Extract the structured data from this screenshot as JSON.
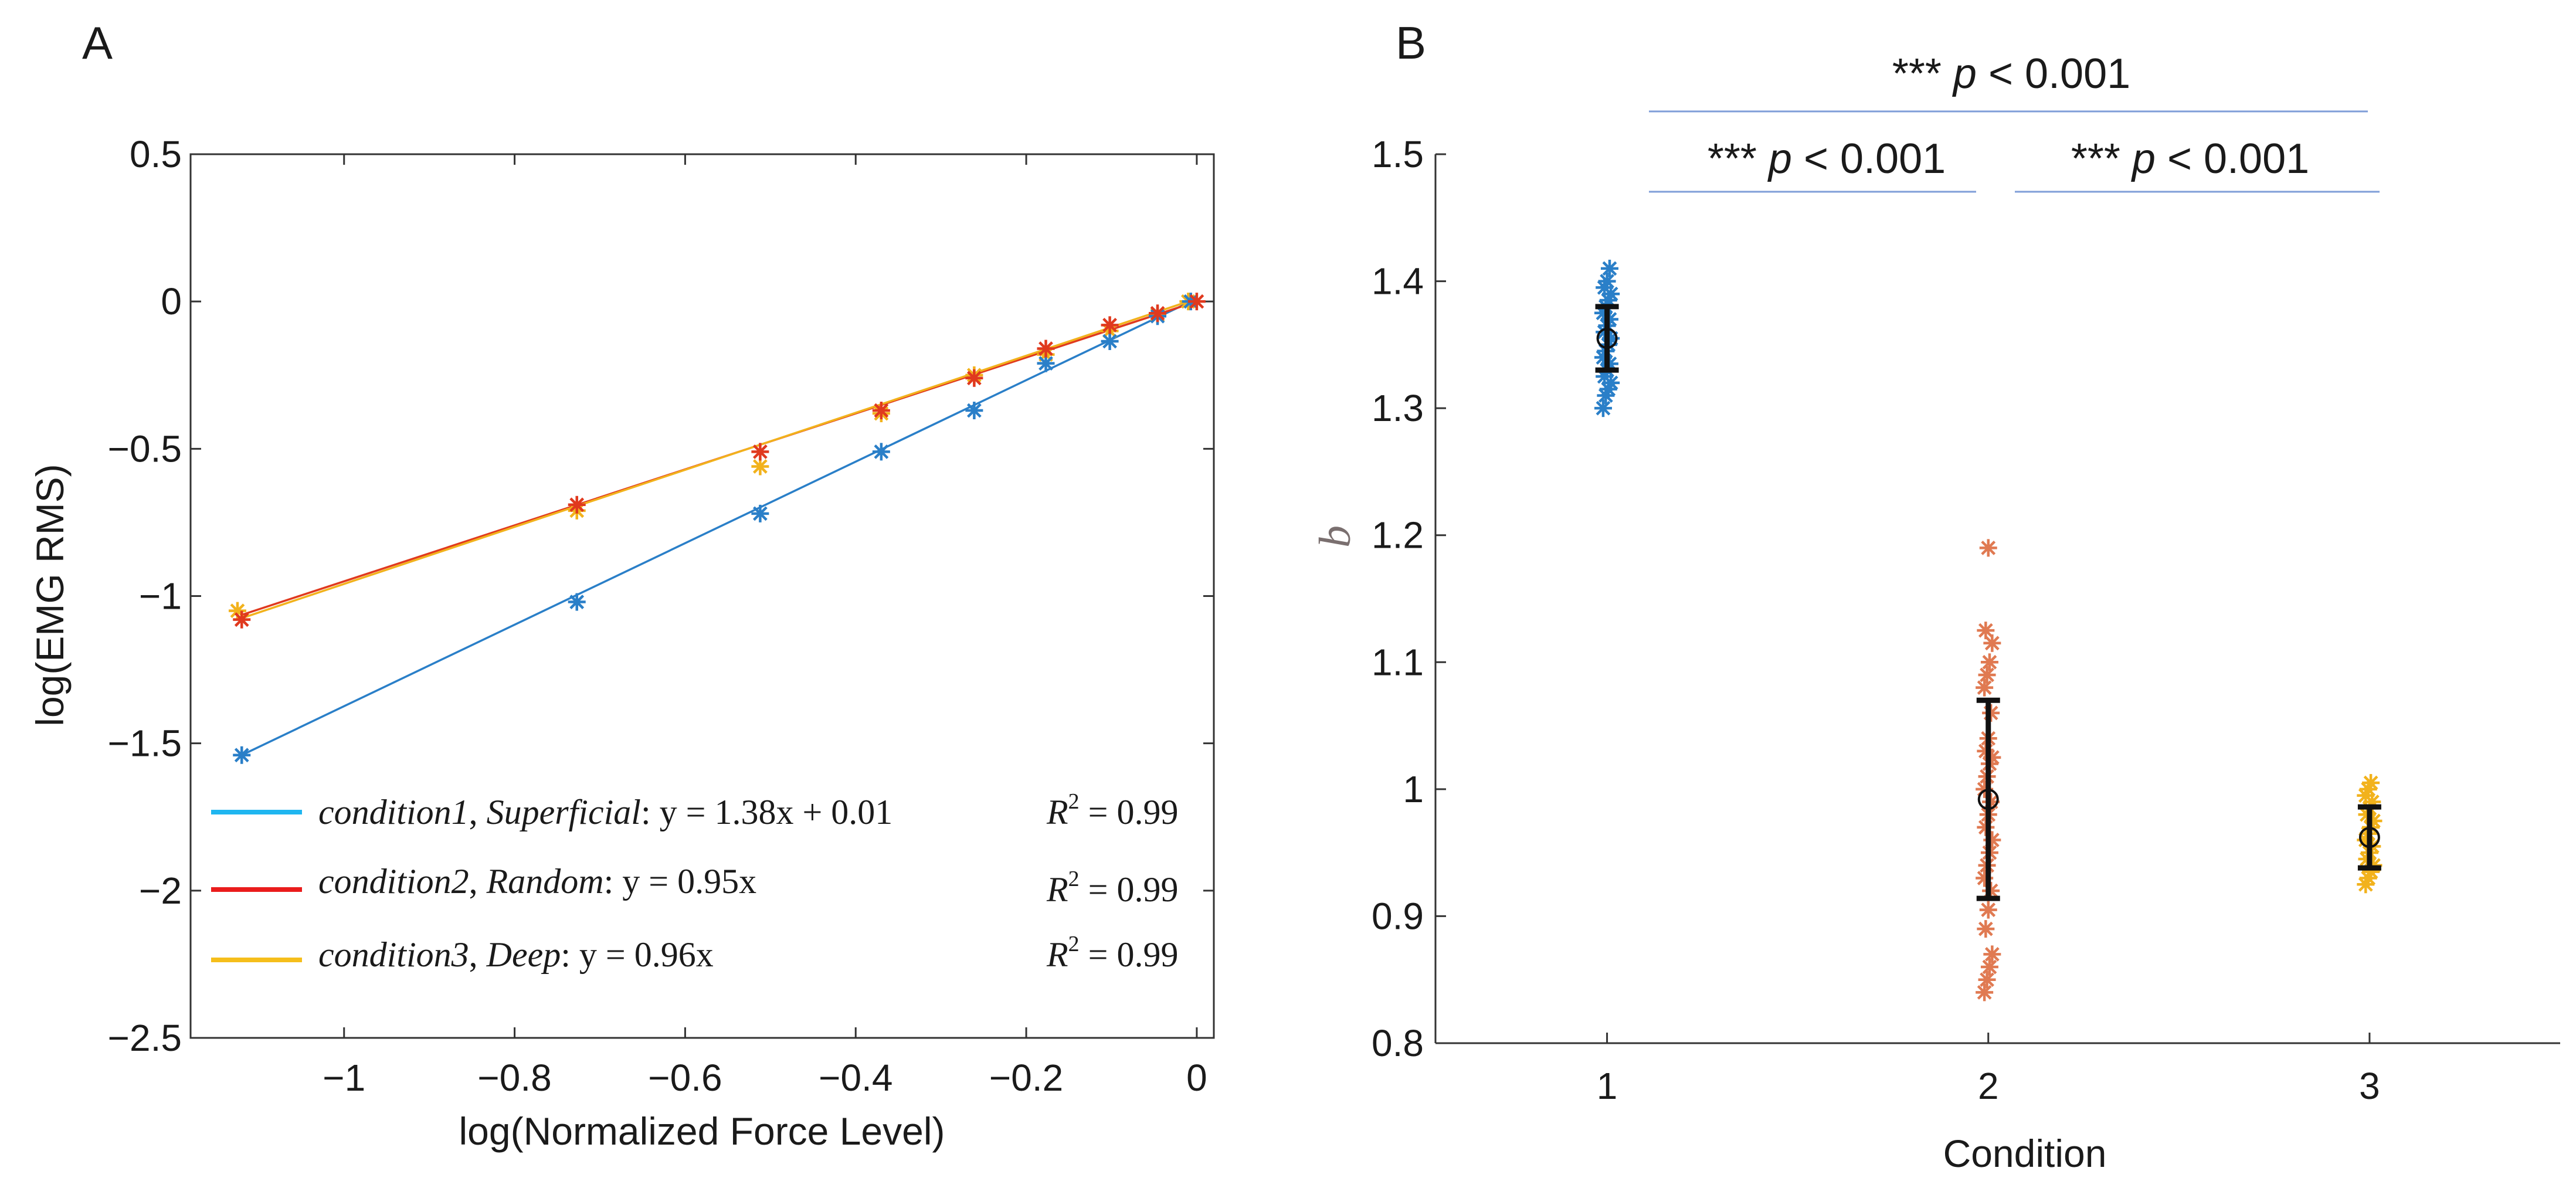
{
  "panelA": {
    "label": "A",
    "xlabel": "log(Normalized Force Level)",
    "ylabel": "log(EMG  RMS)",
    "xticks": [
      -1,
      -0.8,
      -0.6,
      -0.4,
      -0.2,
      0
    ],
    "xtick_labels": [
      "−1",
      "−0.8",
      "−0.6",
      "−0.4",
      "−0.2",
      "0"
    ],
    "yticks": [
      0.5,
      0,
      -0.5,
      -1,
      -1.5,
      -2,
      -2.5
    ],
    "ytick_labels": [
      "0.5",
      "0",
      "−0.5",
      "−1",
      "−1.5",
      "−2",
      "−2.5"
    ],
    "legend": [
      {
        "condition": "condition1",
        "name": "Superficial",
        "eq_prefix": ":  y  = 1.38",
        "eq_suffix": "x + 0.01",
        "r2_label": "R",
        "r2_value": " = 0.99"
      },
      {
        "condition": "condition2",
        "name": "Random",
        "eq_prefix": ":  y  = 0.95",
        "eq_suffix": "x",
        "r2_label": "R",
        "r2_value": " = 0.99"
      },
      {
        "condition": "condition3",
        "name": "Deep",
        "eq_prefix": ":  y  = 0.96",
        "eq_suffix": "x",
        "r2_label": "R",
        "r2_value": " = 0.99"
      }
    ]
  },
  "panelB": {
    "label": "B",
    "xlabel": "Condition",
    "ylabel": "b",
    "xtick_labels": [
      "1",
      "2",
      "3"
    ],
    "ytick_labels": [
      "1.5",
      "1.4",
      "1.3",
      "1.2",
      "1.1",
      "1",
      "0.9",
      "0.8"
    ],
    "significance": [
      {
        "stars": "***",
        "p": "p",
        "value": "< 0.001"
      },
      {
        "stars": "***",
        "p": "p",
        "value": "< 0.001"
      },
      {
        "stars": "***",
        "p": "p",
        "value": "< 0.001"
      }
    ]
  },
  "colors": {
    "c1_points": "#2a7fc8",
    "c1_legend": "#1fb6f0",
    "c2_points": "#e0391e",
    "c2_legend": "#ea1c1c",
    "c3_points": "#f2b21c",
    "c3_legend": "#f5be1b",
    "b_c2_points": "#e07a52",
    "sig_line": "#7f9ed8"
  },
  "chart_data": [
    {
      "type": "scatter",
      "title": "",
      "xlabel": "log(Normalized Force Level)",
      "ylabel": "log(EMG  RMS)",
      "xlim": [
        -1.18,
        0.02
      ],
      "ylim": [
        -2.5,
        0.5
      ],
      "series": [
        {
          "name": "condition1, Superficial",
          "fit": {
            "slope": 1.38,
            "intercept": 0.01,
            "r2": 0.99
          },
          "x": [
            -1.12,
            -0.727,
            -0.512,
            -0.37,
            -0.261,
            -0.177,
            -0.102,
            -0.046,
            -0.007
          ],
          "y": [
            -1.54,
            -1.02,
            -0.72,
            -0.51,
            -0.37,
            -0.21,
            -0.135,
            -0.05,
            0.0
          ]
        },
        {
          "name": "condition2, Random",
          "fit": {
            "slope": 0.95,
            "intercept": 0.0,
            "r2": 0.99
          },
          "x": [
            -1.12,
            -0.727,
            -0.512,
            -0.37,
            -0.261,
            -0.177,
            -0.102,
            -0.046,
            0.0
          ],
          "y": [
            -1.08,
            -0.69,
            -0.51,
            -0.37,
            -0.26,
            -0.16,
            -0.08,
            -0.04,
            0.0
          ]
        },
        {
          "name": "condition3, Deep",
          "fit": {
            "slope": 0.96,
            "intercept": 0.0,
            "r2": 0.99
          },
          "x": [
            -1.125,
            -0.727,
            -0.512,
            -0.37,
            -0.261,
            -0.177,
            -0.102,
            -0.046,
            -0.01
          ],
          "y": [
            -1.05,
            -0.71,
            -0.56,
            -0.38,
            -0.25,
            -0.18,
            -0.1,
            -0.045,
            0.0
          ]
        }
      ]
    },
    {
      "type": "scatter",
      "title": "",
      "xlabel": "Condition",
      "ylabel": "b",
      "xlim": [
        0.55,
        3.5
      ],
      "ylim": [
        0.8,
        1.5
      ],
      "series": [
        {
          "name": "Condition 1",
          "x": 1,
          "mean": 1.355,
          "errorbar": [
            1.33,
            1.38
          ],
          "points": [
            1.3,
            1.31,
            1.315,
            1.32,
            1.325,
            1.33,
            1.335,
            1.34,
            1.345,
            1.35,
            1.355,
            1.36,
            1.365,
            1.37,
            1.375,
            1.38,
            1.385,
            1.39,
            1.395,
            1.4,
            1.41
          ]
        },
        {
          "name": "Condition 2",
          "x": 2,
          "mean": 0.992,
          "errorbar": [
            0.914,
            1.07
          ],
          "points": [
            0.84,
            0.85,
            0.86,
            0.87,
            0.89,
            0.905,
            0.92,
            0.93,
            0.94,
            0.95,
            0.96,
            0.97,
            0.98,
            0.99,
            1.0,
            1.01,
            1.02,
            1.025,
            1.03,
            1.04,
            1.06,
            1.08,
            1.09,
            1.1,
            1.115,
            1.125,
            1.19
          ]
        },
        {
          "name": "Condition 3",
          "x": 3,
          "mean": 0.962,
          "errorbar": [
            0.938,
            0.986
          ],
          "points": [
            0.925,
            0.93,
            0.935,
            0.94,
            0.945,
            0.95,
            0.955,
            0.96,
            0.965,
            0.97,
            0.975,
            0.98,
            0.985,
            0.99,
            0.995,
            1.0,
            1.005
          ]
        }
      ],
      "significance": [
        {
          "pair": [
            1,
            3
          ],
          "label": "*** p < 0.001"
        },
        {
          "pair": [
            1,
            2
          ],
          "label": "*** p < 0.001"
        },
        {
          "pair": [
            2,
            3
          ],
          "label": "*** p < 0.001"
        }
      ]
    }
  ]
}
